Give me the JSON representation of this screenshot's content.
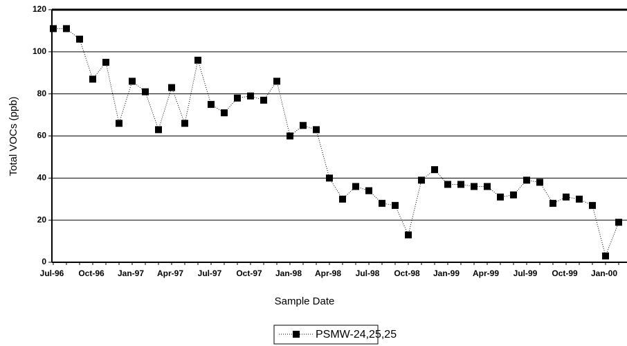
{
  "chart_data": {
    "type": "line",
    "categories": [
      "Jul-96",
      null,
      null,
      "Oct-96",
      null,
      null,
      "Jan-97",
      null,
      null,
      "Apr-97",
      null,
      null,
      "Jul-97",
      null,
      null,
      "Oct-97",
      null,
      null,
      "Jan-98",
      null,
      null,
      "Apr-98",
      null,
      null,
      "Jul-98",
      null,
      null,
      "Oct-98",
      null,
      null,
      "Jan-99",
      null,
      null,
      "Apr-99",
      null,
      null,
      "Jul-99",
      null,
      null,
      "Oct-99",
      null,
      null,
      "Jan-00",
      null
    ],
    "series": [
      {
        "name": "PSMW-24,25,25",
        "color": "#000000",
        "values": [
          111,
          111,
          106,
          87,
          95,
          66,
          86,
          81,
          63,
          83,
          66,
          96,
          75,
          71,
          78,
          79,
          77,
          86,
          60,
          65,
          63,
          40,
          30,
          36,
          34,
          28,
          27,
          13,
          39,
          44,
          37,
          37,
          36,
          36,
          31,
          32,
          39,
          38,
          28,
          31,
          30,
          27,
          3,
          19
        ]
      }
    ],
    "x_label": "Sample Date",
    "y_label": "Total VOCs (ppb)",
    "ylim": [
      0,
      120
    ],
    "yticks": [
      0,
      20,
      40,
      60,
      80,
      100,
      120
    ],
    "grid": true,
    "legend": "bottom"
  }
}
